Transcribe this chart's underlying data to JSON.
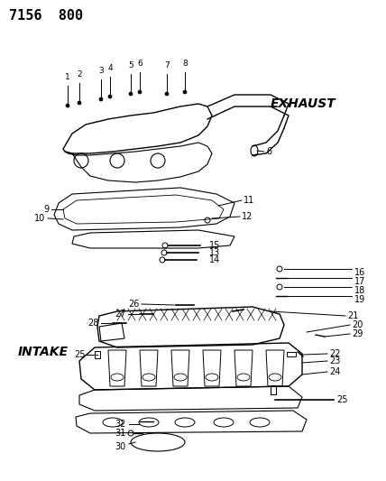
{
  "title": "7156  800",
  "exhaust_label": "EXHAUST",
  "intake_label": "INTAKE",
  "background_color": "#ffffff",
  "line_color": "#000000",
  "text_color": "#000000",
  "title_fontsize": 11,
  "label_fontsize": 9,
  "callout_fontsize": 8
}
